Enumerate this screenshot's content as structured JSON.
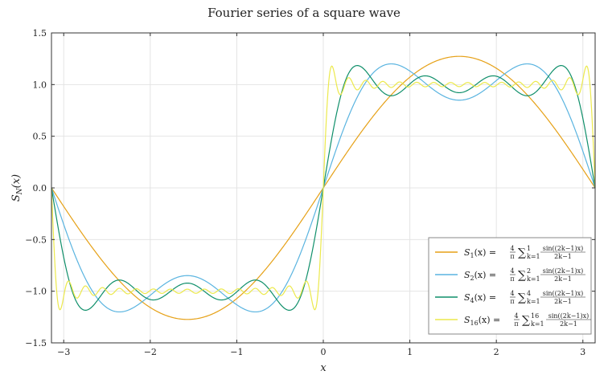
{
  "chart_data": {
    "type": "line",
    "title": "Fourier series of a square wave",
    "xlabel": "x",
    "ylabel": "S_N(x)",
    "xlim": [
      -3.14159,
      3.14159
    ],
    "ylim": [
      -1.5,
      1.5
    ],
    "xticks": [
      -3,
      -2,
      -1,
      0,
      1,
      2,
      3
    ],
    "xtick_labels": [
      "−3",
      "−2",
      "−1",
      "0",
      "1",
      "2",
      "3"
    ],
    "yticks": [
      -1.5,
      -1.0,
      -0.5,
      0.0,
      0.5,
      1.0,
      1.5
    ],
    "ytick_labels": [
      "−1.5",
      "−1.0",
      "−0.5",
      "0.0",
      "0.5",
      "1.0",
      "1.5"
    ],
    "grid": true,
    "legend_position": "lower-right",
    "function": "S_N(x) = 4/π · Σ_{k=1..N} sin((2k−1)x)/(2k−1)",
    "series": [
      {
        "name": "S_1(x)",
        "N": 1,
        "color": "#e6a117",
        "legend_sub": "1",
        "legend_upper": "1"
      },
      {
        "name": "S_2(x)",
        "N": 2,
        "color": "#5ab4e0",
        "legend_sub": "2",
        "legend_upper": "2"
      },
      {
        "name": "S_4(x)",
        "N": 4,
        "color": "#0f8f6a",
        "legend_sub": "4",
        "legend_upper": "4"
      },
      {
        "name": "S_16(x)",
        "N": 16,
        "color": "#ece94c",
        "legend_sub": "16",
        "legend_upper": "16"
      }
    ],
    "legend_text": {
      "S": "S",
      "x_paren": "(x) =",
      "four": "4",
      "pi": "π",
      "sigma": "∑",
      "k_eq_1": "k=1",
      "numerator": "sin((2k−1)x)",
      "denominator": "2k−1"
    }
  }
}
